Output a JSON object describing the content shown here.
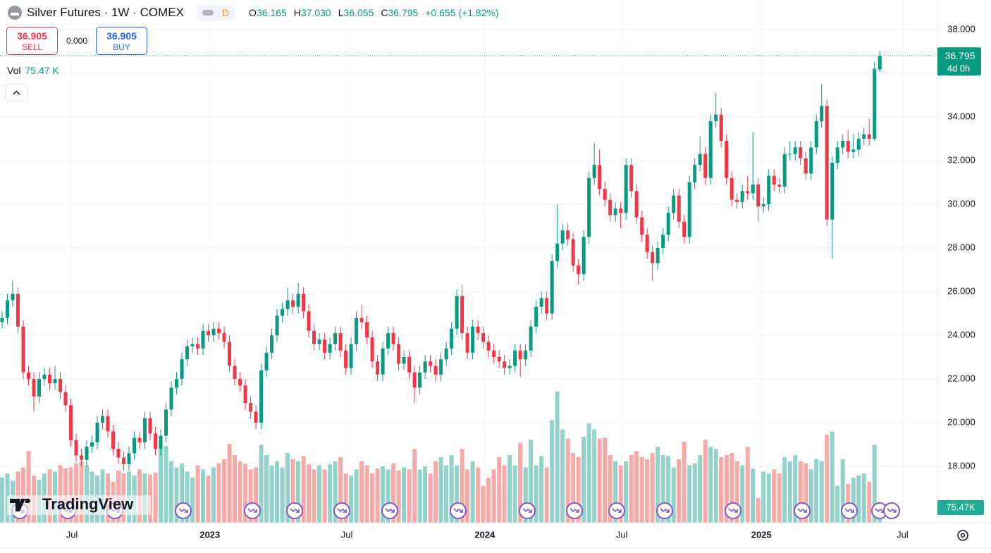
{
  "header": {
    "title": "Silver Futures · 1W · COMEX",
    "badge": "D",
    "ohlc": [
      {
        "key": "O",
        "value": "36.165"
      },
      {
        "key": "H",
        "value": "37.030"
      },
      {
        "key": "L",
        "value": "36.055"
      },
      {
        "key": "C",
        "value": "36.795"
      }
    ],
    "change": "+0.655 (+1.82%)"
  },
  "trade": {
    "sell_price": "36.905",
    "sell": "SELL",
    "spread": "0.000",
    "buy_price": "36.905",
    "buy": "BUY"
  },
  "volume_legend": {
    "label": "Vol",
    "value": "75.47 K"
  },
  "logo": "TradingView",
  "chart_data": {
    "type": "candlestick",
    "up_color": "#089981",
    "down_color": "#f23645",
    "volume_up_color": "#92d2c8",
    "volume_down_color": "#f7a9a7",
    "last_price_label": "36.795",
    "countdown": "4d 0h",
    "volume_tag": "75.47K",
    "grid": true,
    "xlim": [
      -0.4,
      176.9
    ],
    "xticks": [
      {
        "value": 13.2,
        "label": "Jul"
      },
      {
        "value": 39.3,
        "label": "2023"
      },
      {
        "value": 65.2,
        "label": "Jul"
      },
      {
        "value": 91.3,
        "label": "2024"
      },
      {
        "value": 117.2,
        "label": "Jul"
      },
      {
        "value": 143.6,
        "label": "2025"
      },
      {
        "value": 170.3,
        "label": "Jul"
      }
    ],
    "ylim": [
      15.42,
      39.35
    ],
    "yticks": [
      {
        "value": 18,
        "label": "18.000"
      },
      {
        "value": 20,
        "label": "20.000"
      },
      {
        "value": 22,
        "label": "22.000"
      },
      {
        "value": 24,
        "label": "24.000"
      },
      {
        "value": 26,
        "label": "26.000"
      },
      {
        "value": 28,
        "label": "28.000"
      },
      {
        "value": 30,
        "label": "30.000"
      },
      {
        "value": 32,
        "label": "32.000"
      },
      {
        "value": 34,
        "label": "34.000"
      },
      {
        "value": 36,
        "label": "36.000"
      },
      {
        "value": 38,
        "label": "38.000"
      }
    ],
    "vlim": [
      0,
      2550
    ],
    "open": [
      24.6,
      24.8,
      25.6,
      25.9,
      24.4,
      22.3,
      22.0,
      21.2,
      22.0,
      22.2,
      21.8,
      22.0,
      21.4,
      20.8,
      19.2,
      18.5,
      18.3,
      18.9,
      19.1,
      20.0,
      20.3,
      19.6,
      18.8,
      18.4,
      18.1,
      18.6,
      19.3,
      19.1,
      20.2,
      19.5,
      18.8,
      19.4,
      20.6,
      21.6,
      22.0,
      22.9,
      23.5,
      23.6,
      23.4,
      24.2,
      24.0,
      24.3,
      24.1,
      23.7,
      22.6,
      22.0,
      21.7,
      20.9,
      20.5,
      20.0,
      22.4,
      23.2,
      24.0,
      24.9,
      25.2,
      25.6,
      25.3,
      25.9,
      25.1,
      24.2,
      23.6,
      23.8,
      23.2,
      23.6,
      24.1,
      23.3,
      22.5,
      23.6,
      24.8,
      24.6,
      23.9,
      22.8,
      22.2,
      23.4,
      24.1,
      23.6,
      22.7,
      23.0,
      22.3,
      21.6,
      22.3,
      22.8,
      22.6,
      22.2,
      22.9,
      23.4,
      24.3,
      25.8,
      24.1,
      23.2,
      24.4,
      24.1,
      23.7,
      23.3,
      23.0,
      22.8,
      22.5,
      22.6,
      23.3,
      22.9,
      23.3,
      24.4,
      25.3,
      25.7,
      25.0,
      27.4,
      28.2,
      28.8,
      28.4,
      27.2,
      26.8,
      28.5,
      31.2,
      31.8,
      30.7,
      30.2,
      29.5,
      29.8,
      29.6,
      31.8,
      30.6,
      29.4,
      28.6,
      27.8,
      27.3,
      28.0,
      28.6,
      29.6,
      30.4,
      29.2,
      28.5,
      31.0,
      31.8,
      32.3,
      31.2,
      33.8,
      34.1,
      32.9,
      31.2,
      30.2,
      30.1,
      30.6,
      30.5,
      30.9,
      29.9,
      30.0,
      31.3,
      30.9,
      30.8,
      32.3,
      32.3,
      32.6,
      32.1,
      31.4,
      32.6,
      33.8,
      34.5,
      29.3,
      31.9,
      32.6,
      32.9,
      32.4,
      32.5,
      33.0,
      33.2,
      33.0,
      36.165
    ],
    "high": [
      25.1,
      25.9,
      26.5,
      26.2,
      24.7,
      22.6,
      22.3,
      22.3,
      22.5,
      22.5,
      22.6,
      22.3,
      21.7,
      21.1,
      19.5,
      18.8,
      19.2,
      19.4,
      20.3,
      20.6,
      20.6,
      19.9,
      19.1,
      18.7,
      18.9,
      19.6,
      19.6,
      20.5,
      20.5,
      19.8,
      19.7,
      20.9,
      21.9,
      22.3,
      23.2,
      23.8,
      23.9,
      23.9,
      24.5,
      24.5,
      24.6,
      24.6,
      24.4,
      24.0,
      22.9,
      22.3,
      22.0,
      21.2,
      20.8,
      22.7,
      23.5,
      24.3,
      25.2,
      25.5,
      26.2,
      25.9,
      26.4,
      26.2,
      25.4,
      24.5,
      24.1,
      24.1,
      23.9,
      24.4,
      24.4,
      23.6,
      23.9,
      25.1,
      25.4,
      24.9,
      24.2,
      23.1,
      23.7,
      24.4,
      24.4,
      23.9,
      23.3,
      23.3,
      22.6,
      22.6,
      23.1,
      23.1,
      22.9,
      23.2,
      23.7,
      24.6,
      26.1,
      26.3,
      24.4,
      24.7,
      24.7,
      24.4,
      24.0,
      23.6,
      23.3,
      23.1,
      22.9,
      23.6,
      23.6,
      23.6,
      24.7,
      25.6,
      26.0,
      26.0,
      27.7,
      30.0,
      29.1,
      29.1,
      28.7,
      27.5,
      28.8,
      31.5,
      32.8,
      32.5,
      31.0,
      30.5,
      30.1,
      30.1,
      32.1,
      32.1,
      30.9,
      29.7,
      28.9,
      28.1,
      28.3,
      28.9,
      29.9,
      30.7,
      30.7,
      29.5,
      31.3,
      32.1,
      33.1,
      32.6,
      34.1,
      35.1,
      34.4,
      33.2,
      31.5,
      30.5,
      30.9,
      31.3,
      33.3,
      31.2,
      30.3,
      31.6,
      31.6,
      31.2,
      32.6,
      32.9,
      32.9,
      32.9,
      32.4,
      32.9,
      34.1,
      35.5,
      34.8,
      32.2,
      32.9,
      33.2,
      33.4,
      33.2,
      33.3,
      33.5,
      33.9,
      36.5,
      37.03
    ],
    "low": [
      24.3,
      24.5,
      25.3,
      24.1,
      22.0,
      21.7,
      20.5,
      20.9,
      21.7,
      21.5,
      21.5,
      21.1,
      20.5,
      18.9,
      18.2,
      18.0,
      18.0,
      18.6,
      18.8,
      19.7,
      19.3,
      18.5,
      18.1,
      17.8,
      17.8,
      18.3,
      18.8,
      18.8,
      19.2,
      18.5,
      18.5,
      19.1,
      20.3,
      21.3,
      21.7,
      22.6,
      23.2,
      23.1,
      23.1,
      23.7,
      23.7,
      23.8,
      23.4,
      22.3,
      21.7,
      21.4,
      20.6,
      20.2,
      19.7,
      19.7,
      22.1,
      22.9,
      23.7,
      24.6,
      24.9,
      25.0,
      25.0,
      24.8,
      23.9,
      23.3,
      23.3,
      22.9,
      22.9,
      23.3,
      23.0,
      22.2,
      22.2,
      23.3,
      24.3,
      23.6,
      22.5,
      21.9,
      21.9,
      23.1,
      23.3,
      22.4,
      22.4,
      22.0,
      20.9,
      21.3,
      22.0,
      22.3,
      21.9,
      21.9,
      22.6,
      23.1,
      24.0,
      23.8,
      22.9,
      22.9,
      23.8,
      23.4,
      23.0,
      22.7,
      22.5,
      22.2,
      22.2,
      22.3,
      22.1,
      22.6,
      23.0,
      24.1,
      25.0,
      24.7,
      24.7,
      27.1,
      27.9,
      28.1,
      26.9,
      26.3,
      26.5,
      28.2,
      30.9,
      30.4,
      29.9,
      29.2,
      29.2,
      28.9,
      29.3,
      30.3,
      29.1,
      28.3,
      27.5,
      26.5,
      27.0,
      27.7,
      28.3,
      29.3,
      28.9,
      28.2,
      28.2,
      30.7,
      31.5,
      30.9,
      30.9,
      33.5,
      32.6,
      30.9,
      29.9,
      29.8,
      29.8,
      30.2,
      30.2,
      29.2,
      29.6,
      29.7,
      30.6,
      30.5,
      30.5,
      32.0,
      32.0,
      31.8,
      31.1,
      31.1,
      32.3,
      33.5,
      29.0,
      27.5,
      31.6,
      32.3,
      32.1,
      32.1,
      32.2,
      32.7,
      32.7,
      32.9,
      36.055
    ],
    "close": [
      24.8,
      25.6,
      25.9,
      24.4,
      22.3,
      22.0,
      21.2,
      22.0,
      22.2,
      21.8,
      22.0,
      21.4,
      20.8,
      19.2,
      18.5,
      18.3,
      18.9,
      19.1,
      20.0,
      20.3,
      19.6,
      18.8,
      18.4,
      18.1,
      18.6,
      19.3,
      19.1,
      20.2,
      19.5,
      18.8,
      19.4,
      20.6,
      21.6,
      22.0,
      22.9,
      23.5,
      23.6,
      23.4,
      24.2,
      24.0,
      24.3,
      24.1,
      23.7,
      22.6,
      22.0,
      21.7,
      20.9,
      20.5,
      20.0,
      22.4,
      23.2,
      24.0,
      24.9,
      25.2,
      25.6,
      25.3,
      25.9,
      25.1,
      24.2,
      23.6,
      23.8,
      23.2,
      23.6,
      24.1,
      23.3,
      22.5,
      23.6,
      24.8,
      24.6,
      23.9,
      22.8,
      22.2,
      23.4,
      24.1,
      23.6,
      22.7,
      23.0,
      22.3,
      21.6,
      22.3,
      22.8,
      22.6,
      22.2,
      22.9,
      23.4,
      24.3,
      25.8,
      24.1,
      23.2,
      24.4,
      24.1,
      23.7,
      23.3,
      23.0,
      22.8,
      22.5,
      22.6,
      23.3,
      22.9,
      23.3,
      24.4,
      25.3,
      25.7,
      25.0,
      27.4,
      28.2,
      28.8,
      28.4,
      27.2,
      26.8,
      28.5,
      31.2,
      31.8,
      30.7,
      30.2,
      29.5,
      29.8,
      29.6,
      31.8,
      30.6,
      29.4,
      28.6,
      27.8,
      27.3,
      28.0,
      28.6,
      29.6,
      30.4,
      29.2,
      28.5,
      31.0,
      31.8,
      32.3,
      31.2,
      33.8,
      34.1,
      32.9,
      31.2,
      30.2,
      30.1,
      30.6,
      30.5,
      30.9,
      29.9,
      30.0,
      31.3,
      30.9,
      30.8,
      32.3,
      32.3,
      32.6,
      32.1,
      31.4,
      32.6,
      33.8,
      34.5,
      29.3,
      31.9,
      32.6,
      32.9,
      32.4,
      32.5,
      33.0,
      33.2,
      33.0,
      36.2,
      36.795
    ],
    "volume": [
      220,
      240,
      205,
      250,
      270,
      350,
      230,
      210,
      240,
      260,
      250,
      280,
      265,
      270,
      290,
      300,
      280,
      250,
      230,
      260,
      240,
      200,
      255,
      240,
      250,
      230,
      260,
      240,
      235,
      245,
      360,
      375,
      300,
      270,
      290,
      250,
      220,
      280,
      260,
      230,
      270,
      290,
      310,
      385,
      330,
      300,
      285,
      260,
      270,
      380,
      330,
      280,
      300,
      270,
      340,
      310,
      300,
      325,
      285,
      260,
      280,
      260,
      285,
      300,
      320,
      240,
      230,
      260,
      300,
      280,
      240,
      265,
      275,
      260,
      290,
      255,
      270,
      260,
      360,
      260,
      275,
      240,
      300,
      320,
      280,
      330,
      280,
      360,
      260,
      300,
      270,
      180,
      220,
      260,
      320,
      280,
      330,
      280,
      390,
      270,
      405,
      280,
      325,
      270,
      500,
      640,
      455,
      410,
      340,
      320,
      420,
      485,
      455,
      410,
      415,
      330,
      300,
      280,
      300,
      330,
      350,
      320,
      310,
      340,
      370,
      330,
      325,
      270,
      310,
      395,
      280,
      290,
      330,
      405,
      370,
      360,
      320,
      330,
      340,
      300,
      280,
      370,
      265,
      120,
      250,
      240,
      260,
      240,
      320,
      300,
      330,
      300,
      290,
      260,
      310,
      300,
      430,
      445,
      180,
      310,
      190,
      220,
      230,
      240,
      200,
      380,
      75.47
    ]
  }
}
